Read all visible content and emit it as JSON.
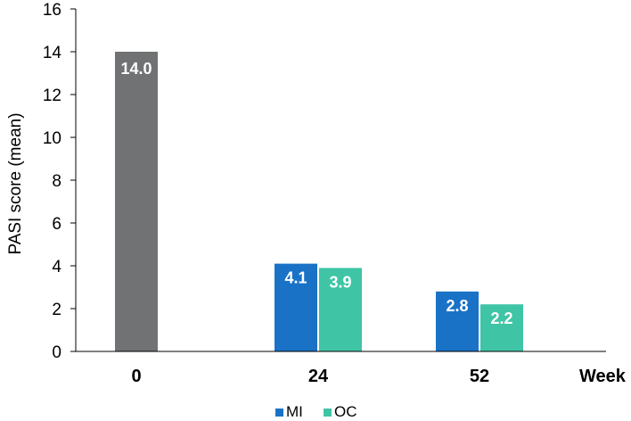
{
  "chart_data": {
    "type": "bar",
    "categories": [
      "0",
      "24",
      "52"
    ],
    "xlabel": "Week",
    "ylabel": "PASI score (mean)",
    "ylim": [
      0,
      16
    ],
    "yticks": [
      0,
      2,
      4,
      6,
      8,
      10,
      12,
      14,
      16
    ],
    "grid": false,
    "legend_position": "bottom",
    "baseline": {
      "category": "0",
      "value": 14.0,
      "label": "14.0",
      "color": "#707274"
    },
    "series": [
      {
        "name": "MI",
        "color": "#1a72c7",
        "values": [
          null,
          4.1,
          2.8
        ],
        "labels": [
          "",
          "4.1",
          "2.8"
        ]
      },
      {
        "name": "OC",
        "color": "#3fc5a6",
        "values": [
          null,
          3.9,
          2.2
        ],
        "labels": [
          "",
          "3.9",
          "2.2"
        ]
      }
    ]
  }
}
